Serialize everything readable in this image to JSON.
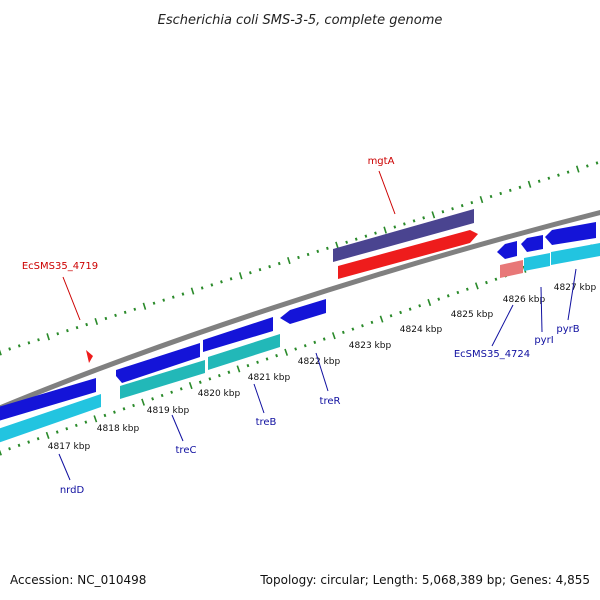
{
  "header": {
    "title": "Escherichia coli SMS-3-5, complete genome"
  },
  "footer": {
    "accession": "Accession: NC_010498",
    "summary": "Topology: circular; Length: 5,068,389 bp; Genes: 4,855"
  },
  "colors": {
    "backbone": "#808080",
    "dots": "#2a8a2a",
    "gene_label": "#1010a0",
    "red_label": "#cc0000",
    "cds_forward": "#1414d8",
    "cds_reverse": "#1414d8",
    "cyan": "#22c4e0",
    "teal": "#22b8b8",
    "slate": "#4a4490",
    "red": "#ee1c1c",
    "pink": "#e87878"
  },
  "ticks": [
    {
      "label": "4817 kbp"
    },
    {
      "label": "4818 kbp"
    },
    {
      "label": "4819 kbp"
    },
    {
      "label": "4820 kbp"
    },
    {
      "label": "4821 kbp"
    },
    {
      "label": "4822 kbp"
    },
    {
      "label": "4823 kbp"
    },
    {
      "label": "4824 kbp"
    },
    {
      "label": "4825 kbp"
    },
    {
      "label": "4826 kbp"
    },
    {
      "label": "4827 kbp"
    }
  ],
  "genes": [
    {
      "label": "nrdD"
    },
    {
      "label": "treC"
    },
    {
      "label": "treB"
    },
    {
      "label": "treR"
    },
    {
      "label": "EcSMS35_4724"
    },
    {
      "label": "pyrI"
    },
    {
      "label": "pyrB"
    },
    {
      "label": "mgtA"
    },
    {
      "label": "EcSMS35_4719"
    }
  ]
}
